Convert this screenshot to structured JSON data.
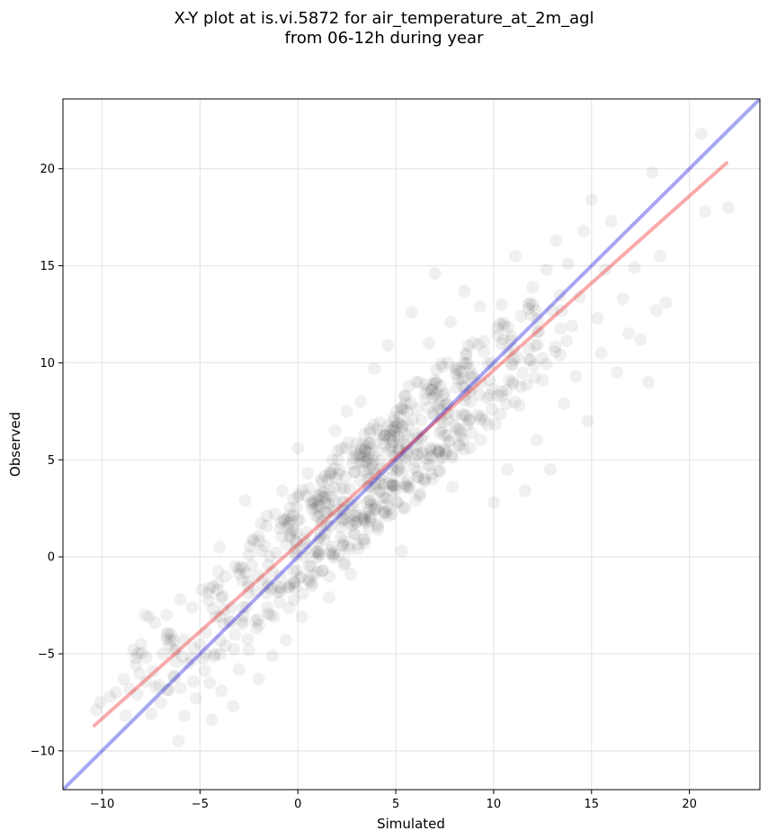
{
  "title_line1": "X-Y plot at is.vi.5872 for air_temperature_at_2m_agl",
  "title_line2": "from 06-12h during year",
  "chart_data": {
    "type": "scatter",
    "title": "X-Y plot at is.vi.5872 for air_temperature_at_2m_agl\nfrom 06-12h during year",
    "xlabel": "Simulated",
    "ylabel": "Observed",
    "xlim": [
      -12,
      23.6
    ],
    "ylim": [
      -12,
      23.6
    ],
    "grid": true,
    "x_ticks": [
      -10,
      -5,
      0,
      5,
      10,
      15,
      20
    ],
    "y_ticks": [
      -10,
      -5,
      0,
      5,
      10,
      15,
      20
    ],
    "x_tick_labels": [
      "−10",
      "−5",
      "0",
      "5",
      "10",
      "15",
      "20"
    ],
    "y_tick_labels": [
      "−10",
      "−5",
      "0",
      "5",
      "10",
      "15",
      "20"
    ],
    "point_color": "#000000",
    "point_opacity": 0.06,
    "points": [
      [
        -10.3,
        -7.9
      ],
      [
        -10.1,
        -7.5
      ],
      [
        -9.6,
        -7.2
      ],
      [
        -9.3,
        -7.0
      ],
      [
        -8.9,
        -6.3
      ],
      [
        -8.8,
        -8.2
      ],
      [
        -8.6,
        -6.8
      ],
      [
        -8.4,
        -4.8
      ],
      [
        -8.2,
        -7.1
      ],
      [
        -8.0,
        -4.5
      ],
      [
        -7.8,
        -3.0
      ],
      [
        -7.6,
        -3.1
      ],
      [
        -7.4,
        -5.9
      ],
      [
        -7.3,
        -3.4
      ],
      [
        -7.1,
        -6.6
      ],
      [
        -6.9,
        -5.0
      ],
      [
        -6.7,
        -3.0
      ],
      [
        -6.5,
        -4.3
      ],
      [
        -6.3,
        -6.2
      ],
      [
        -6.1,
        -9.5
      ],
      [
        -6.0,
        -2.2
      ],
      [
        -5.8,
        -8.2
      ],
      [
        -5.6,
        -5.5
      ],
      [
        -5.4,
        -2.6
      ],
      [
        -5.2,
        -7.3
      ],
      [
        -5.0,
        -4.5
      ],
      [
        -4.9,
        -1.7
      ],
      [
        -4.7,
        -3.9
      ],
      [
        -4.5,
        -6.5
      ],
      [
        -4.4,
        -8.4
      ],
      [
        -4.2,
        -3.1
      ],
      [
        -4.0,
        0.5
      ],
      [
        -3.9,
        -6.9
      ],
      [
        -3.7,
        -1.0
      ],
      [
        -3.5,
        -3.3
      ],
      [
        -3.3,
        -7.7
      ],
      [
        -3.2,
        -0.5
      ],
      [
        -3.0,
        -5.8
      ],
      [
        -2.8,
        -2.6
      ],
      [
        -2.7,
        2.9
      ],
      [
        -2.5,
        -4.8
      ],
      [
        -2.3,
        0.9
      ],
      [
        -2.1,
        -3.7
      ],
      [
        -2.0,
        -6.3
      ],
      [
        -1.8,
        -1.2
      ],
      [
        -1.6,
        1.6
      ],
      [
        -1.4,
        -3.0
      ],
      [
        -1.3,
        -5.1
      ],
      [
        -1.1,
        0.2
      ],
      [
        -0.9,
        -1.8
      ],
      [
        -0.8,
        3.4
      ],
      [
        -0.6,
        -4.3
      ],
      [
        -0.4,
        1.0
      ],
      [
        -0.2,
        -2.2
      ],
      [
        0.0,
        5.6
      ],
      [
        0.2,
        -3.1
      ],
      [
        0.3,
        0.9
      ],
      [
        0.5,
        4.3
      ],
      [
        0.7,
        -1.5
      ],
      [
        0.9,
        2.5
      ],
      [
        1.0,
        -0.8
      ],
      [
        1.2,
        4.0
      ],
      [
        1.4,
        1.2
      ],
      [
        1.6,
        -2.1
      ],
      [
        1.7,
        3.1
      ],
      [
        1.9,
        6.5
      ],
      [
        2.1,
        0.1
      ],
      [
        2.3,
        2.4
      ],
      [
        2.5,
        7.5
      ],
      [
        2.7,
        -0.9
      ],
      [
        2.9,
        4.4
      ],
      [
        3.0,
        1.8
      ],
      [
        3.2,
        8.0
      ],
      [
        3.4,
        0.7
      ],
      [
        3.6,
        5.1
      ],
      [
        3.7,
        2.9
      ],
      [
        3.9,
        9.7
      ],
      [
        4.1,
        1.4
      ],
      [
        4.2,
        6.3
      ],
      [
        4.4,
        3.7
      ],
      [
        4.6,
        10.9
      ],
      [
        4.8,
        2.2
      ],
      [
        4.9,
        7.0
      ],
      [
        5.1,
        4.6
      ],
      [
        5.3,
        0.3
      ],
      [
        5.5,
        8.3
      ],
      [
        5.6,
        5.4
      ],
      [
        5.8,
        12.6
      ],
      [
        6.0,
        2.9
      ],
      [
        6.2,
        9.0
      ],
      [
        6.3,
        6.1
      ],
      [
        6.5,
        4.0
      ],
      [
        6.7,
        11.0
      ],
      [
        6.9,
        7.4
      ],
      [
        7.0,
        14.6
      ],
      [
        7.2,
        5.0
      ],
      [
        7.4,
        9.8
      ],
      [
        7.6,
        7.9
      ],
      [
        7.8,
        12.1
      ],
      [
        7.9,
        3.6
      ],
      [
        8.1,
        8.7
      ],
      [
        8.3,
        6.4
      ],
      [
        8.5,
        13.7
      ],
      [
        8.6,
        10.4
      ],
      [
        8.8,
        5.6
      ],
      [
        9.0,
        9.2
      ],
      [
        9.2,
        7.3
      ],
      [
        9.3,
        12.9
      ],
      [
        9.5,
        11.1
      ],
      [
        9.7,
        6.8
      ],
      [
        9.9,
        10.0
      ],
      [
        10.0,
        2.8
      ],
      [
        10.2,
        8.3
      ],
      [
        10.4,
        13.0
      ],
      [
        10.5,
        11.2
      ],
      [
        10.7,
        4.5
      ],
      [
        10.9,
        9.9
      ],
      [
        11.1,
        15.5
      ],
      [
        11.3,
        7.8
      ],
      [
        11.4,
        12.4
      ],
      [
        11.6,
        3.4
      ],
      [
        11.8,
        10.7
      ],
      [
        12.0,
        13.9
      ],
      [
        12.2,
        6.0
      ],
      [
        12.3,
        11.6
      ],
      [
        12.5,
        9.1
      ],
      [
        12.7,
        14.8
      ],
      [
        12.9,
        4.5
      ],
      [
        13.0,
        12.7
      ],
      [
        13.2,
        16.3
      ],
      [
        13.4,
        10.4
      ],
      [
        13.6,
        7.9
      ],
      [
        13.8,
        15.1
      ],
      [
        14.0,
        11.9
      ],
      [
        14.2,
        9.3
      ],
      [
        14.4,
        13.4
      ],
      [
        14.6,
        16.8
      ],
      [
        14.8,
        7.0
      ],
      [
        15.0,
        18.4
      ],
      [
        15.3,
        12.3
      ],
      [
        15.5,
        10.5
      ],
      [
        15.7,
        14.8
      ],
      [
        16.0,
        17.3
      ],
      [
        16.3,
        9.5
      ],
      [
        16.6,
        13.3
      ],
      [
        16.9,
        11.5
      ],
      [
        17.2,
        14.9
      ],
      [
        17.5,
        11.2
      ],
      [
        17.9,
        9.0
      ],
      [
        18.1,
        19.8
      ],
      [
        18.3,
        12.7
      ],
      [
        18.5,
        15.5
      ],
      [
        18.8,
        13.1
      ],
      [
        20.6,
        21.8
      ],
      [
        20.8,
        17.8
      ],
      [
        22.0,
        18.0
      ]
    ],
    "series": [
      {
        "name": "",
        "color": "#0000dd",
        "opacity": 0.35,
        "x": [
          -12,
          23.6
        ],
        "y": [
          -12,
          23.6
        ]
      },
      {
        "name": "",
        "color": "#ee2222",
        "opacity": 0.38,
        "x": [
          -10.4,
          21.9
        ],
        "y": [
          -8.7,
          20.3
        ]
      }
    ]
  }
}
